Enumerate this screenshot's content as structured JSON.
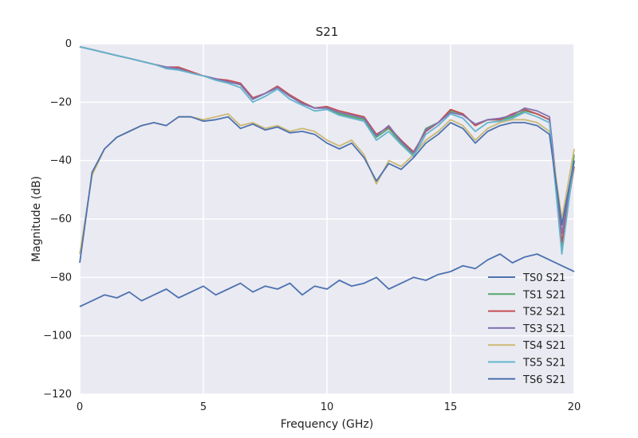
{
  "chart_data": {
    "type": "line",
    "title": "S21",
    "xlabel": "Frequency (GHz)",
    "ylabel": "Magnitude (dB)",
    "xlim": [
      0,
      20
    ],
    "ylim": [
      -120,
      0
    ],
    "x_ticks": [
      "0",
      "5",
      "10",
      "15",
      "20"
    ],
    "y_ticks": [
      "0",
      "−20",
      "−40",
      "−60",
      "−80",
      "−100",
      "−120"
    ],
    "grid": true,
    "background": "#eaeaf2",
    "legend_position": "lower-right",
    "x": [
      0,
      0.5,
      1,
      1.5,
      2,
      2.5,
      3,
      3.5,
      4,
      4.5,
      5,
      5.5,
      6,
      6.5,
      7,
      7.5,
      8,
      8.5,
      9,
      9.5,
      10,
      10.5,
      11,
      11.5,
      12,
      12.5,
      13,
      13.5,
      14,
      14.5,
      15,
      15.5,
      16,
      16.5,
      17,
      17.5,
      18,
      18.5,
      19,
      19.5,
      20
    ],
    "series": [
      {
        "name": "TS0 S21",
        "color": "#4c72b0",
        "values": [
          -90,
          -88,
          -86,
          -87,
          -85,
          -88,
          -86,
          -84,
          -87,
          -85,
          -83,
          -86,
          -84,
          -82,
          -85,
          -83,
          -84,
          -82,
          -86,
          -83,
          -84,
          -81,
          -83,
          -82,
          -80,
          -84,
          -82,
          -80,
          -81,
          -79,
          -78,
          -76,
          -77,
          -74,
          -72,
          -75,
          -73,
          -72,
          -74,
          -76,
          -78
        ]
      },
      {
        "name": "TS1 S21",
        "color": "#55a868",
        "values": [
          -1,
          -2,
          -3,
          -4,
          -5,
          -6,
          -7,
          -8,
          -8.5,
          -10,
          -11,
          -12,
          -13,
          -14,
          -19,
          -17,
          -15,
          -18,
          -20,
          -22,
          -22,
          -24,
          -25,
          -26,
          -32,
          -29,
          -34,
          -38,
          -29,
          -27,
          -23,
          -24,
          -28,
          -26,
          -26,
          -25,
          -23,
          -24,
          -26,
          -70,
          -38
        ]
      },
      {
        "name": "TS2 S21",
        "color": "#c44e52",
        "values": [
          -1,
          -2,
          -3,
          -4,
          -5,
          -6,
          -7,
          -8,
          -8,
          -9.5,
          -11,
          -12,
          -12.5,
          -13.5,
          -18.5,
          -17,
          -14.5,
          -17.5,
          -20,
          -22,
          -21.5,
          -23,
          -24,
          -25,
          -31,
          -28.5,
          -33,
          -37,
          -30,
          -27,
          -22.5,
          -24,
          -28,
          -26,
          -26,
          -24,
          -22.5,
          -24,
          -26,
          -68,
          -42
        ]
      },
      {
        "name": "TS3 S21",
        "color": "#8172b2",
        "values": [
          -1,
          -2,
          -3,
          -4,
          -5,
          -6,
          -7,
          -8,
          -8.5,
          -10,
          -11,
          -12,
          -13,
          -14,
          -19,
          -17,
          -15,
          -18,
          -20.5,
          -22,
          -22,
          -23.5,
          -24.5,
          -25.5,
          -31.5,
          -28,
          -33.5,
          -37.5,
          -29.5,
          -27,
          -23.5,
          -24.5,
          -27.5,
          -26,
          -25.5,
          -24.5,
          -22,
          -23,
          -25,
          -65,
          -40
        ]
      },
      {
        "name": "TS4 S21",
        "color": "#ccb974",
        "values": [
          -72,
          -45,
          -36,
          -32,
          -30,
          -28,
          -27,
          -28,
          -25,
          -25,
          -26,
          -25,
          -24,
          -28,
          -27,
          -29,
          -28,
          -30,
          -29,
          -30,
          -33,
          -35,
          -33,
          -38,
          -48,
          -40,
          -42,
          -38,
          -33,
          -30,
          -26,
          -28,
          -33,
          -29,
          -27,
          -26,
          -26,
          -27,
          -30,
          -60,
          -36
        ]
      },
      {
        "name": "TS5 S21",
        "color": "#64b5cd",
        "values": [
          -1,
          -2,
          -3,
          -4,
          -5,
          -6,
          -7,
          -8.5,
          -9,
          -10,
          -11,
          -12.5,
          -13.5,
          -15,
          -20,
          -18,
          -15.5,
          -19,
          -21,
          -23,
          -22.5,
          -24.5,
          -25.5,
          -26.5,
          -33,
          -30,
          -34.5,
          -38.5,
          -31,
          -28,
          -24,
          -25.5,
          -30,
          -27,
          -26.5,
          -25.5,
          -23.5,
          -25,
          -27,
          -72,
          -40
        ]
      },
      {
        "name": "TS6 S21",
        "color": "#4c72b0",
        "values": [
          -75,
          -44,
          -36,
          -32,
          -30,
          -28,
          -27,
          -28,
          -25,
          -25,
          -26.5,
          -26,
          -25,
          -29,
          -27.5,
          -29.5,
          -28.5,
          -30.5,
          -30,
          -31,
          -34,
          -36,
          -34,
          -39,
          -47,
          -41,
          -43,
          -39,
          -34,
          -31,
          -27,
          -29,
          -34,
          -30,
          -28,
          -27,
          -27,
          -28,
          -31,
          -62,
          -40
        ]
      }
    ]
  }
}
